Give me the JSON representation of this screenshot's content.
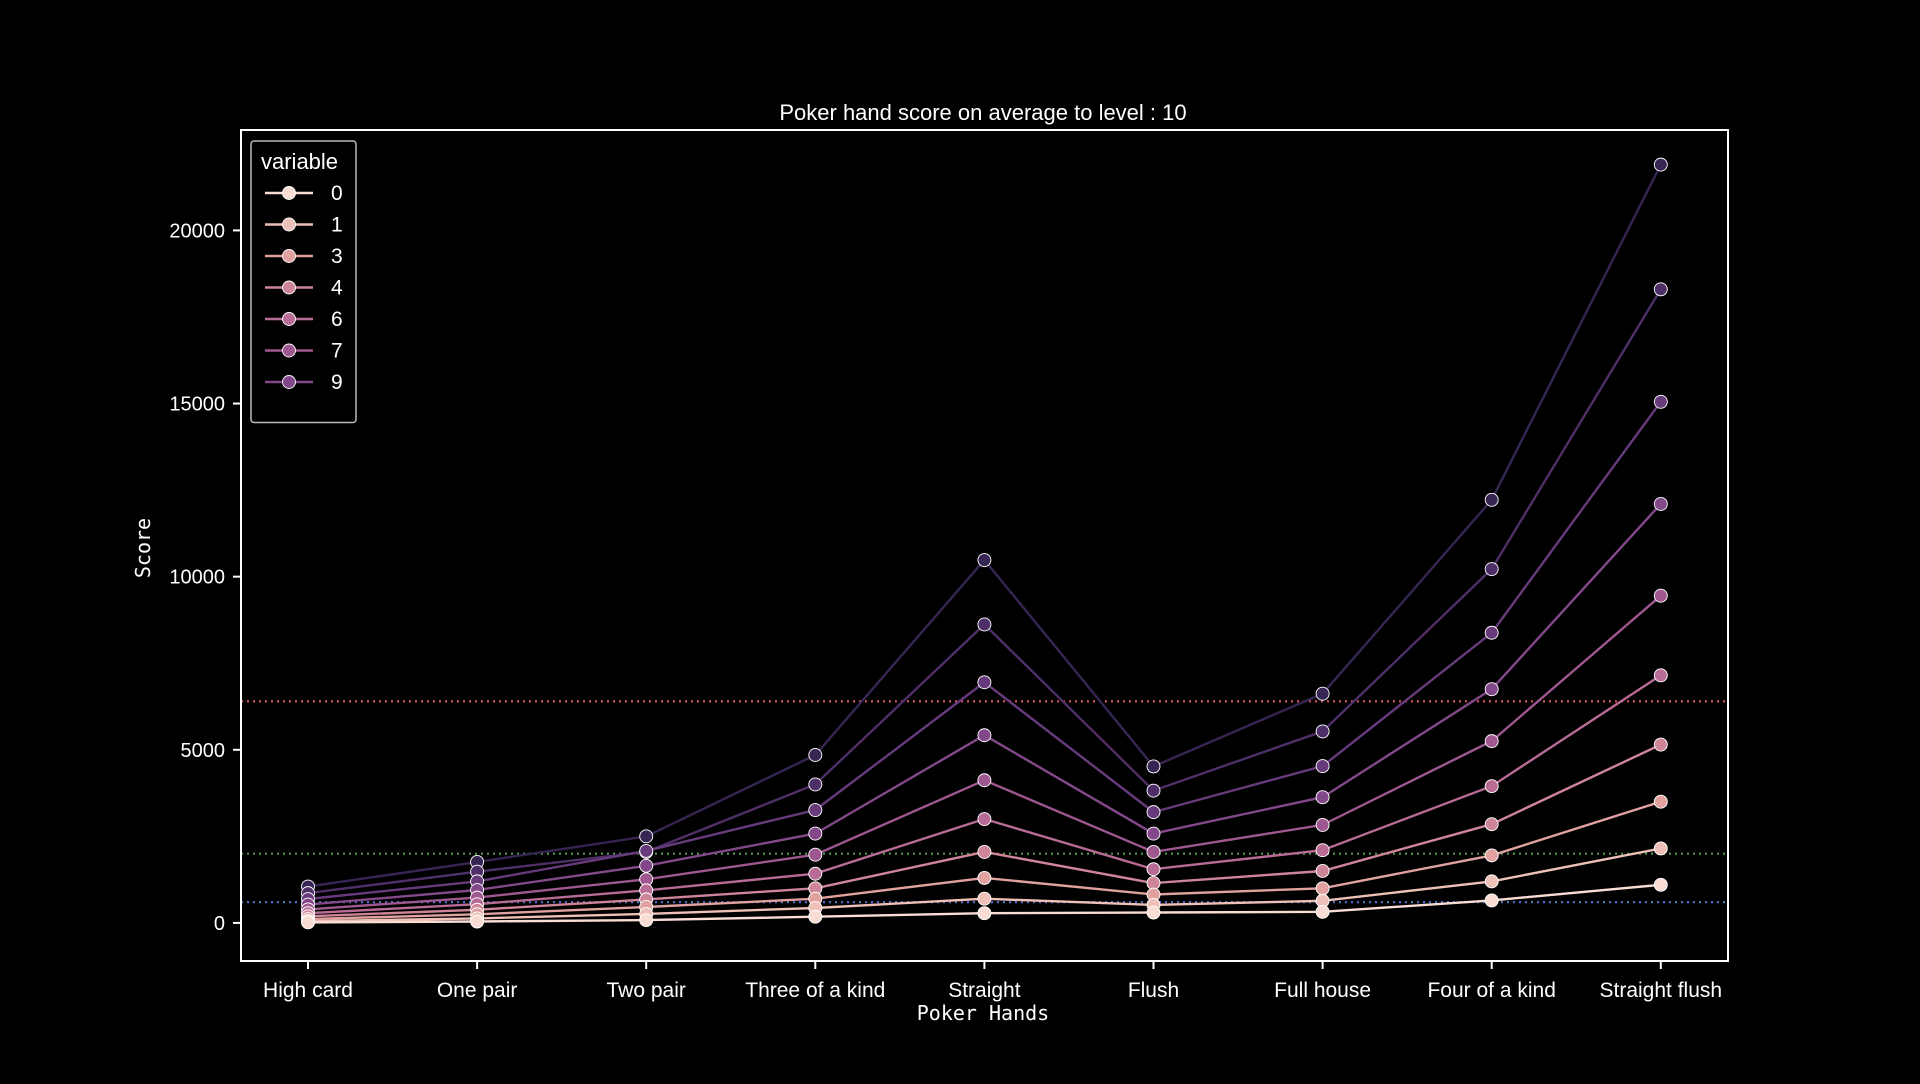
{
  "chart_data": {
    "type": "line",
    "title": "Poker hand score on average to level : 10",
    "xlabel": "Poker Hands",
    "ylabel": "Score",
    "categories": [
      "High card",
      "One pair",
      "Two pair",
      "Three of a kind",
      "Straight",
      "Flush",
      "Full house",
      "Four of a kind",
      "Straight flush"
    ],
    "ylim": [
      -1100,
      22900
    ],
    "yticks": [
      0,
      5000,
      10000,
      15000,
      20000
    ],
    "grid": false,
    "legend": {
      "title": "variable",
      "placement": "top-left"
    },
    "series": [
      {
        "name": "0",
        "color": "#f9ddd5",
        "values": [
          16,
          40,
          80,
          180,
          280,
          300,
          320,
          650,
          1100
        ]
      },
      {
        "name": "1",
        "color": "#efc0b7",
        "values": [
          50,
          130,
          260,
          430,
          700,
          520,
          640,
          1200,
          2150
        ]
      },
      {
        "name": "3",
        "color": "#e0a19f",
        "values": [
          110,
          250,
          460,
          700,
          1300,
          820,
          1000,
          1950,
          3500
        ]
      },
      {
        "name": "4",
        "color": "#cf8598",
        "values": [
          190,
          380,
          680,
          1000,
          2050,
          1150,
          1500,
          2850,
          5150
        ]
      },
      {
        "name": "6",
        "color": "#b86b95",
        "values": [
          280,
          540,
          940,
          1420,
          3000,
          1550,
          2100,
          3950,
          7150
        ]
      },
      {
        "name": "7",
        "color": "#9e578f",
        "values": [
          390,
          730,
          1260,
          1970,
          4120,
          2050,
          2830,
          5250,
          9450
        ]
      },
      {
        "name": "9",
        "color": "#83488a",
        "values": [
          530,
          950,
          1650,
          2580,
          5420,
          2580,
          3630,
          6750,
          12100
        ]
      },
      {
        "name": "",
        "color": "#673a7c",
        "values": [
          690,
          1200,
          2080,
          3260,
          6950,
          3200,
          4530,
          8380,
          15050
        ]
      },
      {
        "name": "",
        "color": "#4e2f68",
        "values": [
          860,
          1480,
          2050,
          4000,
          8620,
          3820,
          5530,
          10220,
          18300
        ]
      },
      {
        "name": "",
        "color": "#372553",
        "values": [
          1050,
          1760,
          2500,
          4850,
          10480,
          4520,
          6620,
          12220,
          21900
        ]
      }
    ],
    "reference_lines": [
      {
        "y": 6400,
        "color": "#d9555b"
      },
      {
        "y": 2000,
        "color": "#4e9a4c"
      },
      {
        "y": 600,
        "color": "#4f6fbf"
      }
    ]
  }
}
